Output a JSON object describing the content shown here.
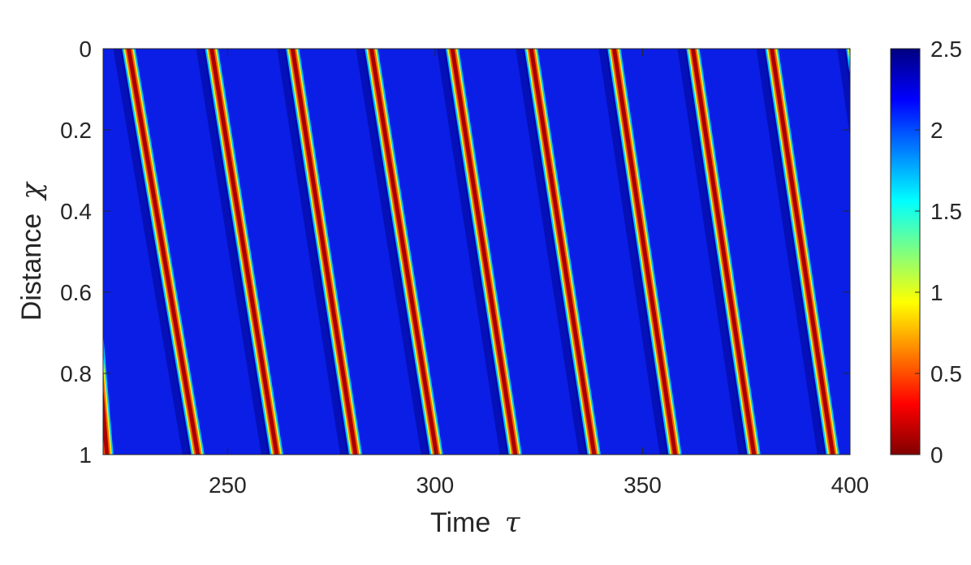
{
  "chart_data": {
    "type": "heatmap",
    "title": "",
    "xlabel": "Time",
    "xlabel_symbol": "τ",
    "ylabel": "Distance",
    "ylabel_symbol": "χ",
    "xlim": [
      220,
      400
    ],
    "ylim": [
      0,
      1
    ],
    "y_reversed": true,
    "x_ticks": [
      250,
      300,
      350,
      400
    ],
    "x_tick_labels": [
      "250",
      "300",
      "350",
      "400"
    ],
    "y_ticks": [
      0,
      0.2,
      0.4,
      0.6,
      0.8,
      1
    ],
    "y_tick_labels": [
      "0",
      "0.2",
      "0.4",
      "0.6",
      "0.8",
      "1"
    ],
    "colorbar": {
      "colormap": "jet-reversed",
      "min": 0,
      "max": 2.5,
      "ticks": [
        0,
        0.5,
        1,
        1.5,
        2,
        2.5
      ],
      "tick_labels": [
        "0",
        "0.5",
        "1",
        "1.5",
        "2",
        "2.5"
      ]
    },
    "background_value": 2.3,
    "wave_min_value": 0.1,
    "wave_fronts": [
      {
        "x_at_top": 212.5,
        "x_at_bottom": 221.0
      },
      {
        "x_at_top": 226.0,
        "x_at_bottom": 243.0
      },
      {
        "x_at_top": 246.0,
        "x_at_bottom": 262.0
      },
      {
        "x_at_top": 265.5,
        "x_at_bottom": 281.0
      },
      {
        "x_at_top": 284.5,
        "x_at_bottom": 300.5
      },
      {
        "x_at_top": 304.0,
        "x_at_bottom": 319.5
      },
      {
        "x_at_top": 323.0,
        "x_at_bottom": 338.5
      },
      {
        "x_at_top": 343.0,
        "x_at_bottom": 358.0
      },
      {
        "x_at_top": 362.0,
        "x_at_bottom": 377.0
      },
      {
        "x_at_top": 381.0,
        "x_at_bottom": 396.0
      },
      {
        "x_at_top": 400.5,
        "x_at_bottom": 415.0
      }
    ]
  }
}
